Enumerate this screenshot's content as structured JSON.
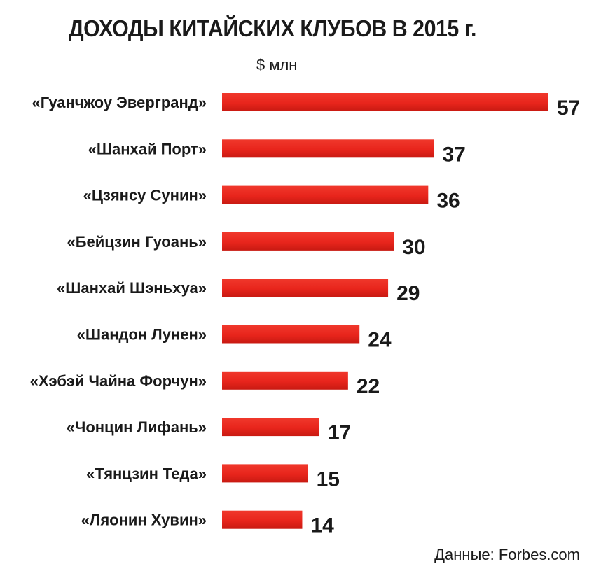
{
  "chart_data": {
    "type": "bar",
    "orientation": "horizontal",
    "title": "ДОХОДЫ КИТАЙСКИХ КЛУБОВ В 2015 г.",
    "unit": "$ млн",
    "source": "Данные: Forbes.com",
    "categories": [
      "«Гуанчжоу Эвергранд»",
      "«Шанхай Порт»",
      "«Цзянсу Сунин»",
      "«Бейцзин Гуоань»",
      "«Шанхай Шэньхуа»",
      "«Шандон Лунен»",
      "«Хэбэй Чайна Форчун»",
      "«Чонцин Лифань»",
      "«Тянцзин Теда»",
      "«Ляонин Хувин»"
    ],
    "values": [
      57,
      37,
      36,
      30,
      29,
      24,
      22,
      17,
      15,
      14
    ],
    "xlim": [
      0,
      57
    ],
    "bar_color": "#e8251c",
    "grid": false,
    "legend": "none"
  }
}
